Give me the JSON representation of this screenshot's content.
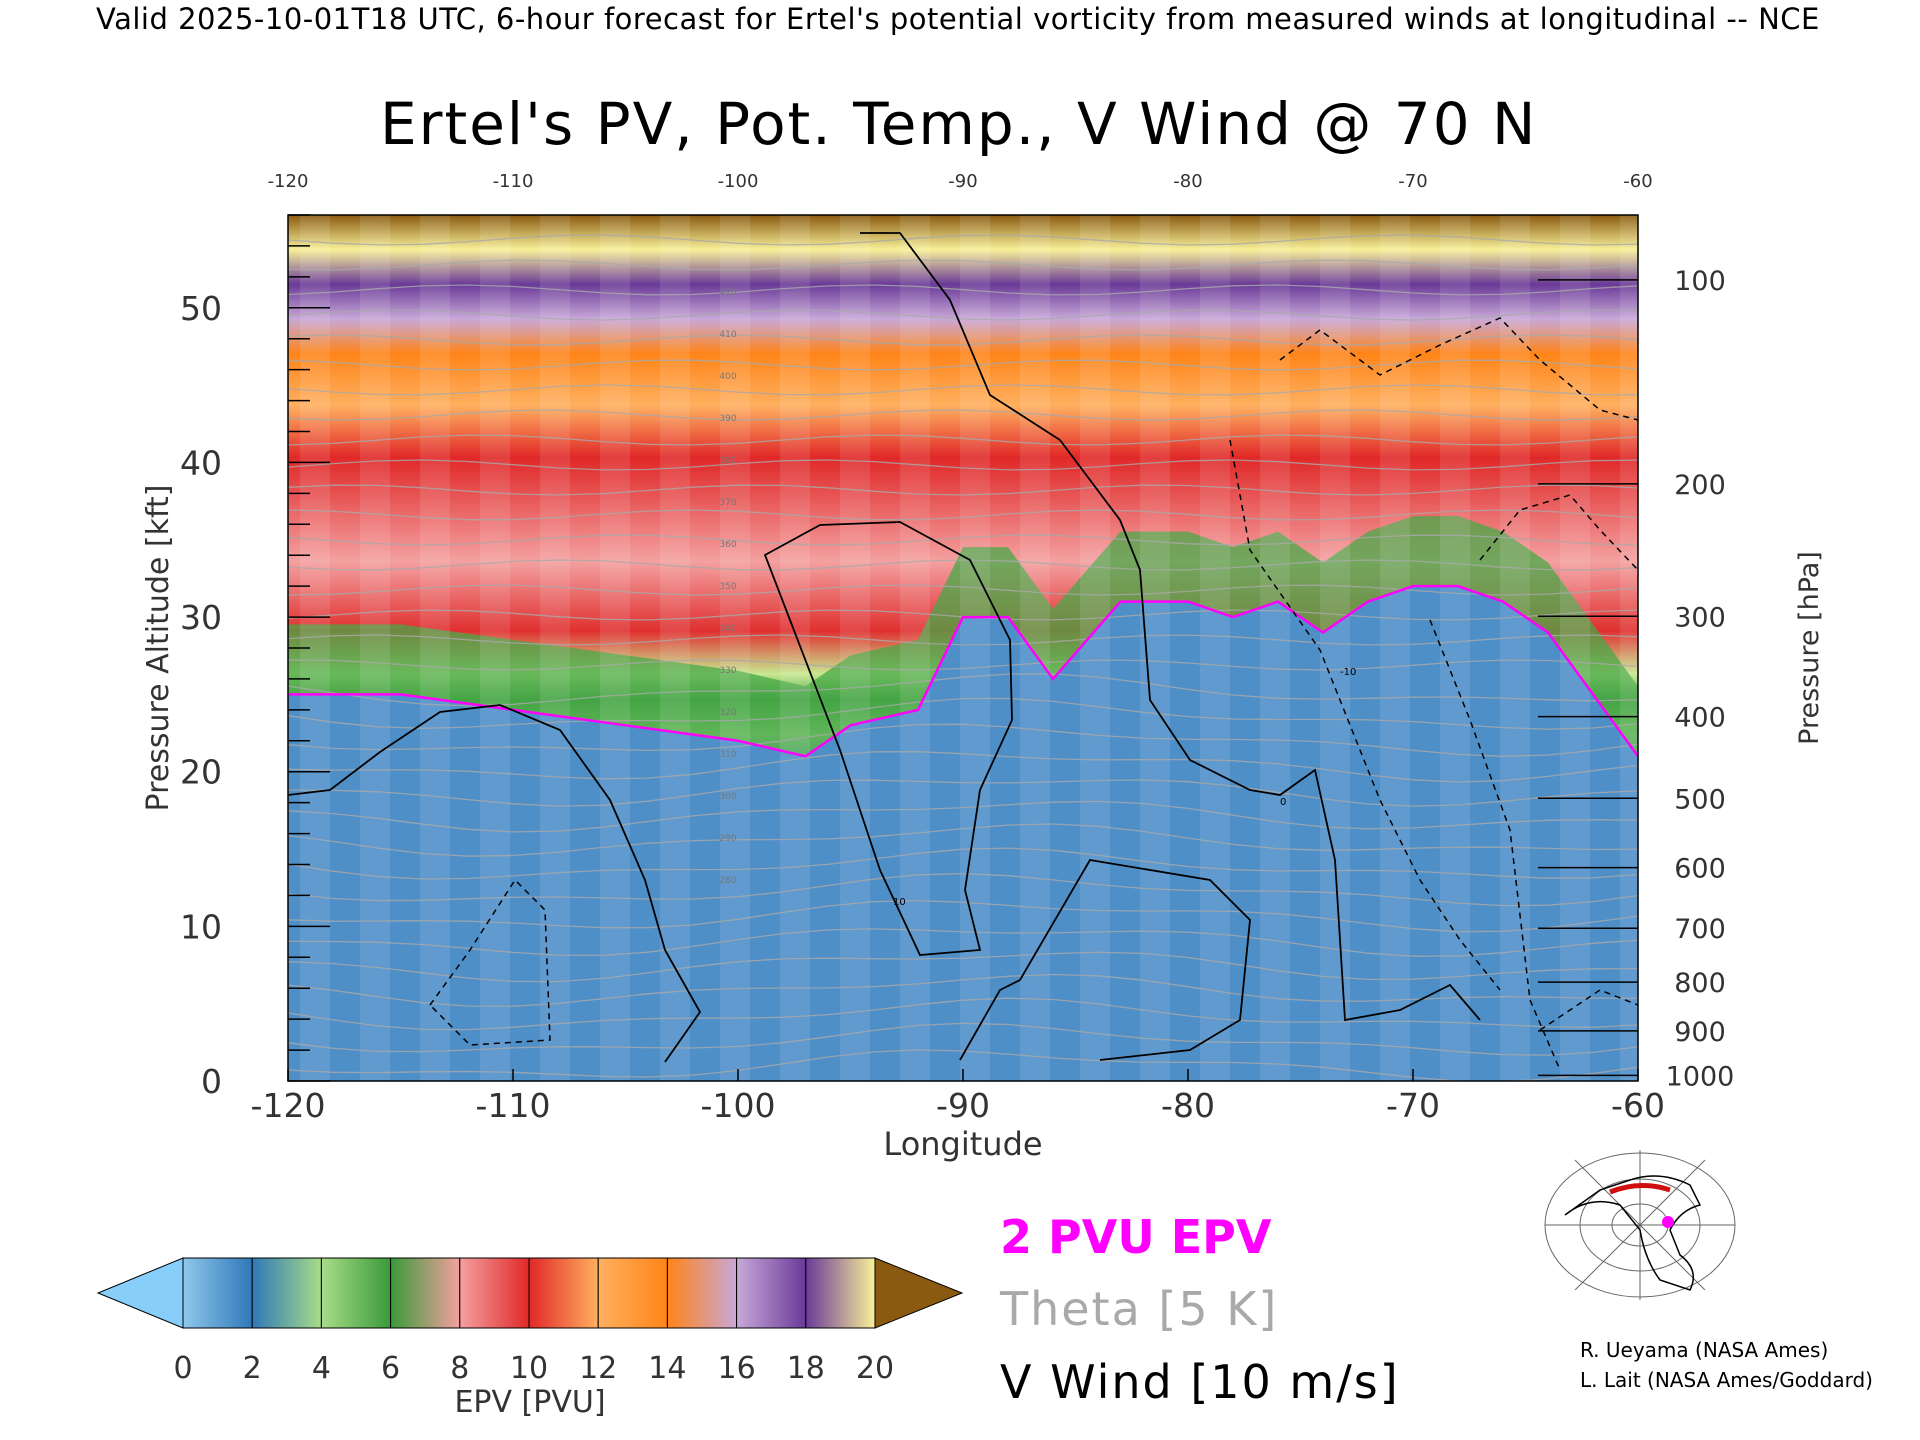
{
  "header": {
    "valid_line": "Valid 2025-10-01T18 UTC, 6-hour forecast for Ertel's potential vorticity from measured winds at longitudinal -- NCE"
  },
  "chart_data": {
    "type": "heatmap",
    "title": "Ertel's PV, Pot. Temp., V Wind @ 70 N",
    "xlabel": "Longitude",
    "ylabel": "Pressure Altitude [kft]",
    "y2label": "Pressure [hPa]",
    "xlim": [
      -120,
      -60
    ],
    "ylim": [
      0,
      56
    ],
    "x_ticks": [
      "-120",
      "-110",
      "-100",
      "-90",
      "-80",
      "-70",
      "-60"
    ],
    "x_tick_values": [
      -120,
      -110,
      -100,
      -90,
      -80,
      -70,
      -60
    ],
    "y_ticks": [
      "0",
      "10",
      "20",
      "30",
      "40",
      "50"
    ],
    "y_tick_values": [
      0,
      10,
      20,
      30,
      40,
      50
    ],
    "pressure_ticks": [
      "100",
      "200",
      "300",
      "400",
      "500",
      "600",
      "700",
      "800",
      "900",
      "1000"
    ],
    "pressure_tick_values": [
      100,
      200,
      300,
      400,
      500,
      600,
      700,
      800,
      900,
      1000
    ],
    "colorbar": {
      "label": "EPV [PVU]",
      "tick_labels": [
        "0",
        "2",
        "4",
        "6",
        "8",
        "10",
        "12",
        "14",
        "16",
        "18",
        "20"
      ],
      "colors": [
        "#8fc8ec",
        "#2f78b8",
        "#a8dc88",
        "#3a9a3a",
        "#f4a0a0",
        "#e02828",
        "#ffb060",
        "#ff8418",
        "#c8a8d8",
        "#6a3a98",
        "#f8f098",
        "#8a5a10"
      ],
      "under_color": "#87cefa",
      "over_color": "#8a5a10"
    },
    "tropopause_pv": 2,
    "tropopause_pressure_alt_kft": {
      "lon": [
        -120,
        -115,
        -110,
        -105,
        -100,
        -97,
        -95,
        -92,
        -90,
        -88,
        -86,
        -83,
        -80,
        -78,
        -76,
        -74,
        -72,
        -70,
        -68,
        -66,
        -64,
        -62,
        -60
      ],
      "alt": [
        25,
        25,
        24,
        23,
        22,
        21,
        23,
        24,
        30,
        30,
        26,
        31,
        31,
        30,
        31,
        29,
        31,
        32,
        32,
        31,
        29,
        25,
        21
      ]
    },
    "theta_labels": [
      "420",
      "410",
      "400",
      "390",
      "380",
      "370",
      "360",
      "350",
      "340",
      "330",
      "320",
      "310",
      "300",
      "290",
      "280"
    ],
    "v_wind_contour_labels": [
      "0",
      "10",
      "-10"
    ]
  },
  "legend": {
    "epv": "2 PVU EPV",
    "theta": "Theta [5 K]",
    "vwind": "V Wind [10 m/s]"
  },
  "credits": {
    "line1": "R. Ueyama (NASA Ames)",
    "line2": "L. Lait (NASA Ames/Goddard)"
  },
  "colors": {
    "epv_contour": "#ff00ff",
    "theta_contour": "#a9a9a9",
    "vwind_contour": "#000000"
  }
}
